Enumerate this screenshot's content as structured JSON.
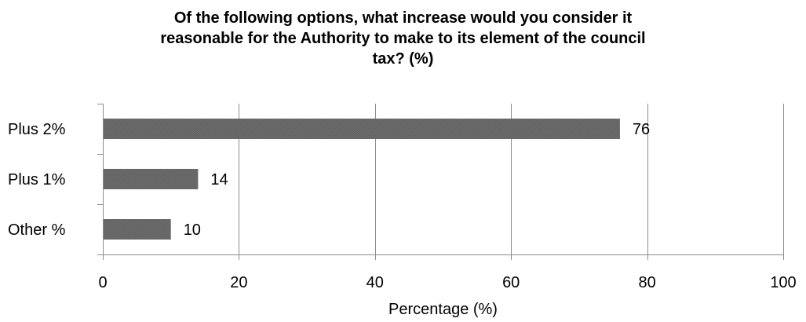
{
  "chart_data": {
    "type": "bar",
    "orientation": "horizontal",
    "title_lines": [
      "Of the following options, what increase would you consider it",
      "reasonable for the Authority to make to its element of the council",
      "tax? (%)"
    ],
    "categories": [
      "Plus 2%",
      "Plus 1%",
      "Other %"
    ],
    "values": [
      76,
      14,
      10
    ],
    "xlabel": "Percentage (%)",
    "ylabel": "",
    "xlim": [
      0,
      100
    ],
    "xticks": [
      0,
      20,
      40,
      60,
      80,
      100
    ],
    "grid": "vertical",
    "legend": "none",
    "data_labels": true,
    "colors": {
      "bar": "#6e6e6e",
      "bar_hatch": "#5f5f5f",
      "grid": "#8c8c8c",
      "axis": "#8c8c8c",
      "text": "#000000"
    }
  }
}
